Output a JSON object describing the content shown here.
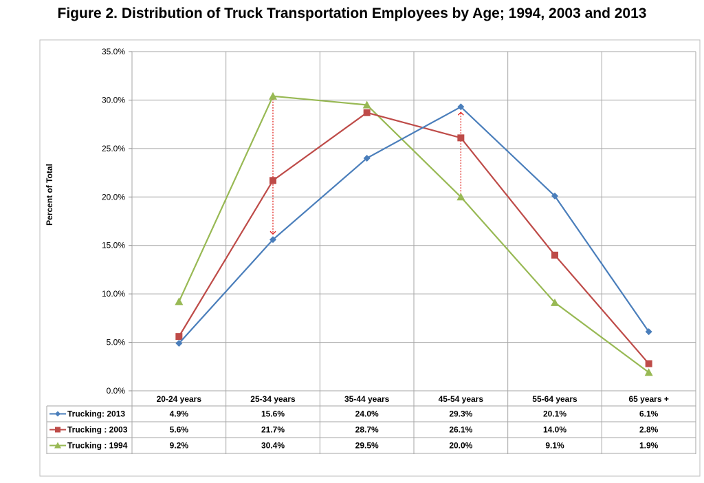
{
  "title": "Figure 2. Distribution of Truck Transportation Employees by Age; 1994, 2003 and 2013",
  "chart_data": {
    "type": "line",
    "ylabel": "Percent of Total",
    "ylim": [
      0,
      35
    ],
    "ytick_labels": [
      "0.0%",
      "5.0%",
      "10.0%",
      "15.0%",
      "20.0%",
      "25.0%",
      "30.0%",
      "35.0%"
    ],
    "categories": [
      "20-24 years",
      "25-34 years",
      "35-44 years",
      "45-54 years",
      "55-64 years",
      "65 years +"
    ],
    "series": [
      {
        "name": "Trucking: 2013",
        "color": "#4a7ebb",
        "marker": "diamond",
        "values": [
          4.9,
          15.6,
          24.0,
          29.3,
          20.1,
          6.1
        ],
        "labels": [
          "4.9%",
          "15.6%",
          "24.0%",
          "29.3%",
          "20.1%",
          "6.1%"
        ]
      },
      {
        "name": "Trucking : 2003",
        "color": "#be4b48",
        "marker": "square",
        "values": [
          5.6,
          21.7,
          28.7,
          26.1,
          14.0,
          2.8
        ],
        "labels": [
          "5.6%",
          "21.7%",
          "28.7%",
          "26.1%",
          "14.0%",
          "2.8%"
        ]
      },
      {
        "name": "Trucking : 1994",
        "color": "#98b954",
        "marker": "triangle",
        "values": [
          9.2,
          30.4,
          29.5,
          20.0,
          9.1,
          1.9
        ],
        "labels": [
          "9.2%",
          "30.4%",
          "29.5%",
          "20.0%",
          "9.1%",
          "1.9%"
        ]
      }
    ],
    "annotations": [
      {
        "type": "dotted-arrow",
        "color": "#e0201b",
        "category": "25-34 years",
        "from": 30.4,
        "to": 15.6
      },
      {
        "type": "dotted-arrow",
        "color": "#e0201b",
        "category": "45-54 years",
        "from": 20.0,
        "to": 29.3
      }
    ],
    "grid": true,
    "legend": "data-table-rows"
  }
}
